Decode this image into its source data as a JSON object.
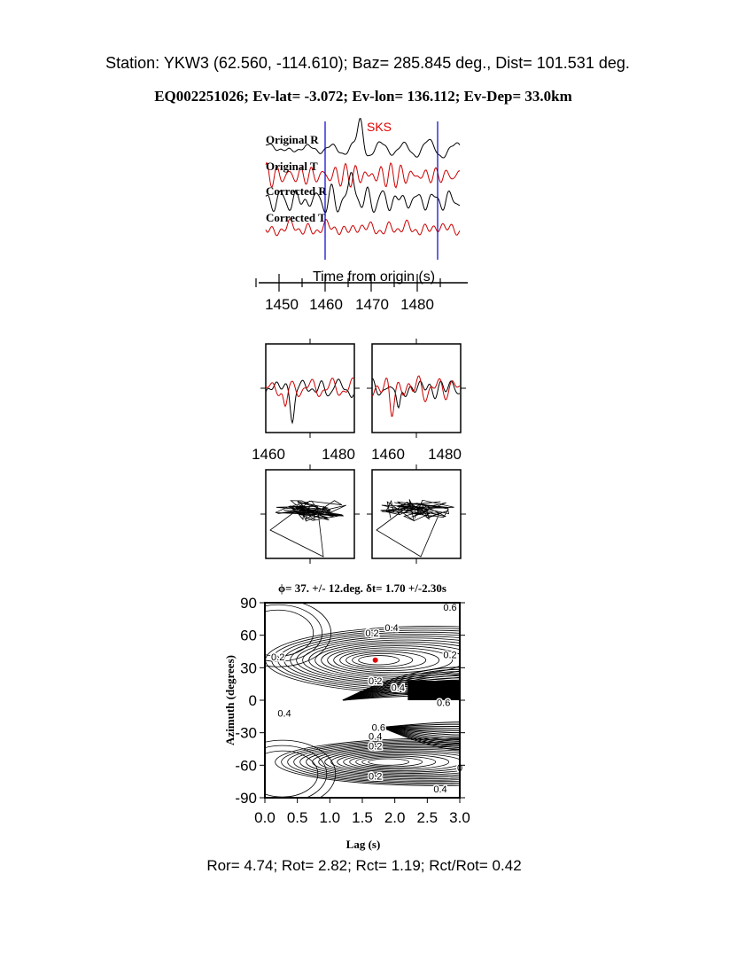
{
  "header": {
    "station_line": "Station: YKW3 (62.560, -114.610); Baz=  285.845 deg., Dist=  101.531 deg.",
    "event_line": "EQ002251026; Ev-lat=  -3.072; Ev-lon= 136.112; Ev-Dep= 33.0km"
  },
  "colors": {
    "trace_r": "#000000",
    "trace_t": "#cc0000",
    "window": "#0000cc",
    "phase": "#e00000",
    "best_fit": "#e00000"
  },
  "chart_data": [
    {
      "type": "line",
      "phase_label": "SKS",
      "trace_labels": [
        "Original R",
        "Original T",
        "Corrected R",
        "Corrected T"
      ],
      "xlabel": "Time from origin (s)",
      "x_ticks": [
        "1450",
        "1460",
        "1470",
        "1480"
      ],
      "window": [
        1460,
        1484.5
      ]
    },
    {
      "type": "line",
      "panels": 2,
      "x_ticks": [
        "1460",
        "1480"
      ]
    },
    {
      "type": "line",
      "subtype": "particle-motion",
      "panels": 2
    },
    {
      "type": "contour",
      "title": "ϕ= 37. +/- 12.deg. δt= 1.70 +/-2.30s",
      "xlabel": "Lag (s)",
      "ylabel": "Azimuth (degrees)",
      "xlim": [
        0.0,
        3.0
      ],
      "ylim": [
        -90,
        90
      ],
      "x_ticks": [
        "0.0",
        "0.5",
        "1.0",
        "1.5",
        "2.0",
        "2.5",
        "3.0"
      ],
      "y_ticks": [
        "90",
        "60",
        "30",
        "0",
        "-30",
        "-60",
        "-90"
      ],
      "best_fit": {
        "lag": 1.7,
        "azimuth": 37
      },
      "contour_labels": [
        "0.6",
        "0.4",
        "0.2",
        "0.2",
        "0.2",
        "0.2",
        "0.4",
        "0.6",
        "0.4",
        "0.6",
        "0.4",
        "0.2",
        "0.2",
        "0.4",
        "0"
      ]
    }
  ],
  "footer": {
    "ratios": "Ror= 4.74; Rot= 2.82; Rct= 1.19; Rct/Rot= 0.42"
  }
}
